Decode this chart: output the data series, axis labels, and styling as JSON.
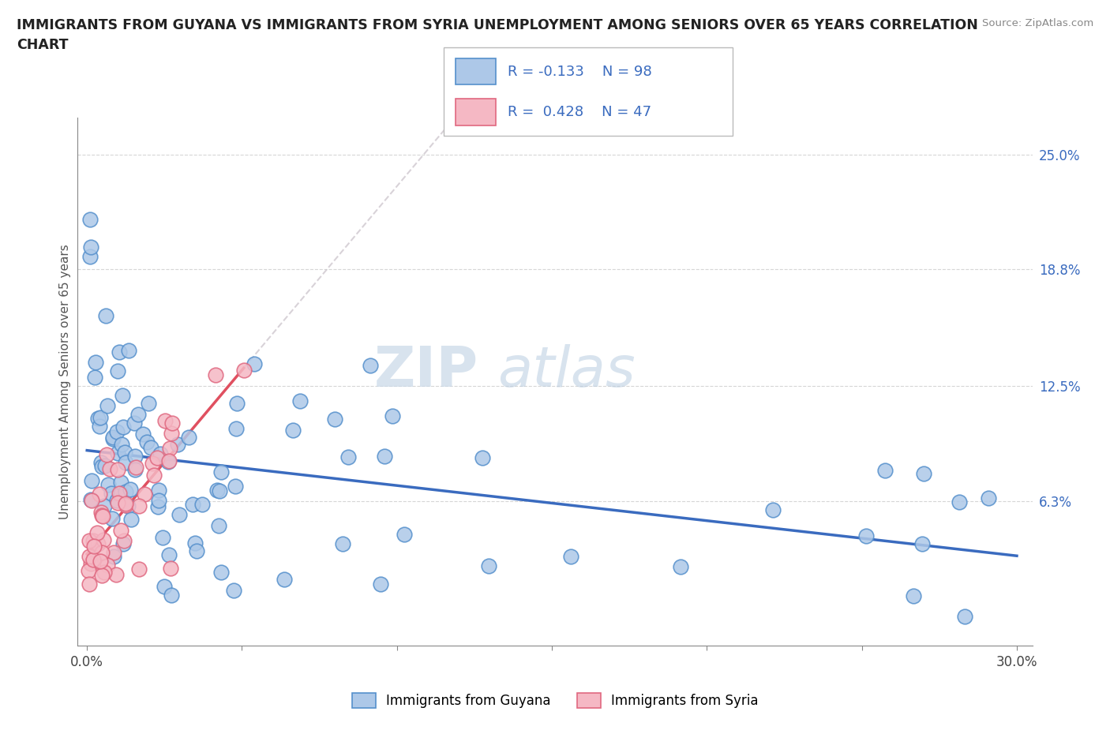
{
  "title_line1": "IMMIGRANTS FROM GUYANA VS IMMIGRANTS FROM SYRIA UNEMPLOYMENT AMONG SENIORS OVER 65 YEARS CORRELATION",
  "title_line2": "CHART",
  "source": "Source: ZipAtlas.com",
  "ylabel": "Unemployment Among Seniors over 65 years",
  "xlim": [
    -0.003,
    0.305
  ],
  "ylim": [
    -0.015,
    0.27
  ],
  "xtick_positions": [
    0.0,
    0.05,
    0.1,
    0.15,
    0.2,
    0.25,
    0.3
  ],
  "xticklabels": [
    "0.0%",
    "",
    "",
    "",
    "",
    "",
    "30.0%"
  ],
  "yticks_right": [
    0.063,
    0.125,
    0.188,
    0.25
  ],
  "ytick_labels_right": [
    "6.3%",
    "12.5%",
    "18.8%",
    "25.0%"
  ],
  "guyana_color": "#adc8e8",
  "guyana_edge_color": "#5590cc",
  "syria_color": "#f5b8c4",
  "syria_edge_color": "#e06880",
  "trend_guyana_color": "#3a6bbf",
  "trend_syria_color": "#e05060",
  "trend_syria_dashed_color": "#d0a0a8",
  "watermark_zip": "ZIP",
  "watermark_atlas": "atlas",
  "legend_text_color": "#3a6bbf",
  "grid_color": "#cccccc",
  "title_color": "#222222",
  "source_color": "#888888",
  "ylabel_color": "#555555"
}
